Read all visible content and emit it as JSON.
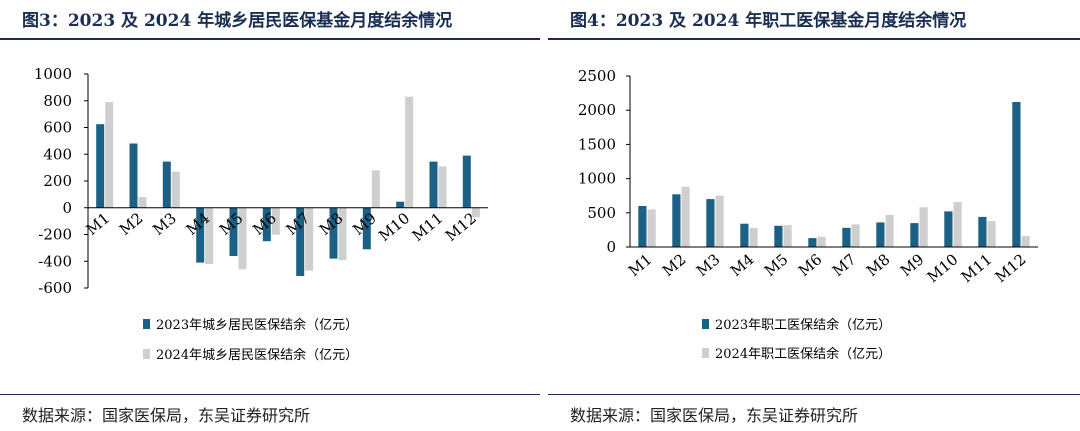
{
  "colors": {
    "s2023": "#1b6185",
    "s2024": "#cfcfcf",
    "axis": "#000000",
    "title": "#1a2e52"
  },
  "panels": [
    {
      "title": "图3：2023 及 2024 年城乡居民医保基金月度结余情况",
      "source": "数据来源：国家医保局，东吴证券研究所"
    },
    {
      "title": "图4：2023 及 2024 年职工医保基金月度结余情况",
      "source": "数据来源：国家医保局，东吴证券研究所"
    }
  ],
  "chart_data": [
    {
      "type": "bar",
      "categories": [
        "M1",
        "M2",
        "M3",
        "M4",
        "M5",
        "M6",
        "M7",
        "M8",
        "M9",
        "M10",
        "M11",
        "M12"
      ],
      "series": [
        {
          "name": "2023年城乡居民医保结余（亿元）",
          "values": [
            625,
            480,
            345,
            -410,
            -360,
            -250,
            -510,
            -380,
            -310,
            45,
            345,
            390
          ]
        },
        {
          "name": "2024年城乡居民医保结余（亿元）",
          "values": [
            790,
            80,
            270,
            -420,
            -460,
            -200,
            -470,
            -390,
            280,
            830,
            310,
            -70
          ]
        }
      ],
      "ylim": [
        -600,
        1000
      ],
      "yticks": [
        1000,
        800,
        600,
        400,
        200,
        0,
        -200,
        -400,
        -600
      ],
      "legend": "bottom",
      "grid": false
    },
    {
      "type": "bar",
      "categories": [
        "M1",
        "M2",
        "M3",
        "M4",
        "M5",
        "M6",
        "M7",
        "M8",
        "M9",
        "M10",
        "M11",
        "M12"
      ],
      "series": [
        {
          "name": "2023年职工医保结余（亿元）",
          "values": [
            600,
            770,
            700,
            340,
            310,
            130,
            280,
            360,
            350,
            520,
            440,
            2120
          ]
        },
        {
          "name": "2024年职工医保结余（亿元）",
          "values": [
            550,
            880,
            750,
            280,
            320,
            150,
            330,
            470,
            580,
            660,
            380,
            160
          ]
        }
      ],
      "ylim": [
        0,
        2500
      ],
      "yticks": [
        2500,
        2000,
        1500,
        1000,
        500,
        0
      ],
      "legend": "bottom",
      "grid": false
    }
  ]
}
